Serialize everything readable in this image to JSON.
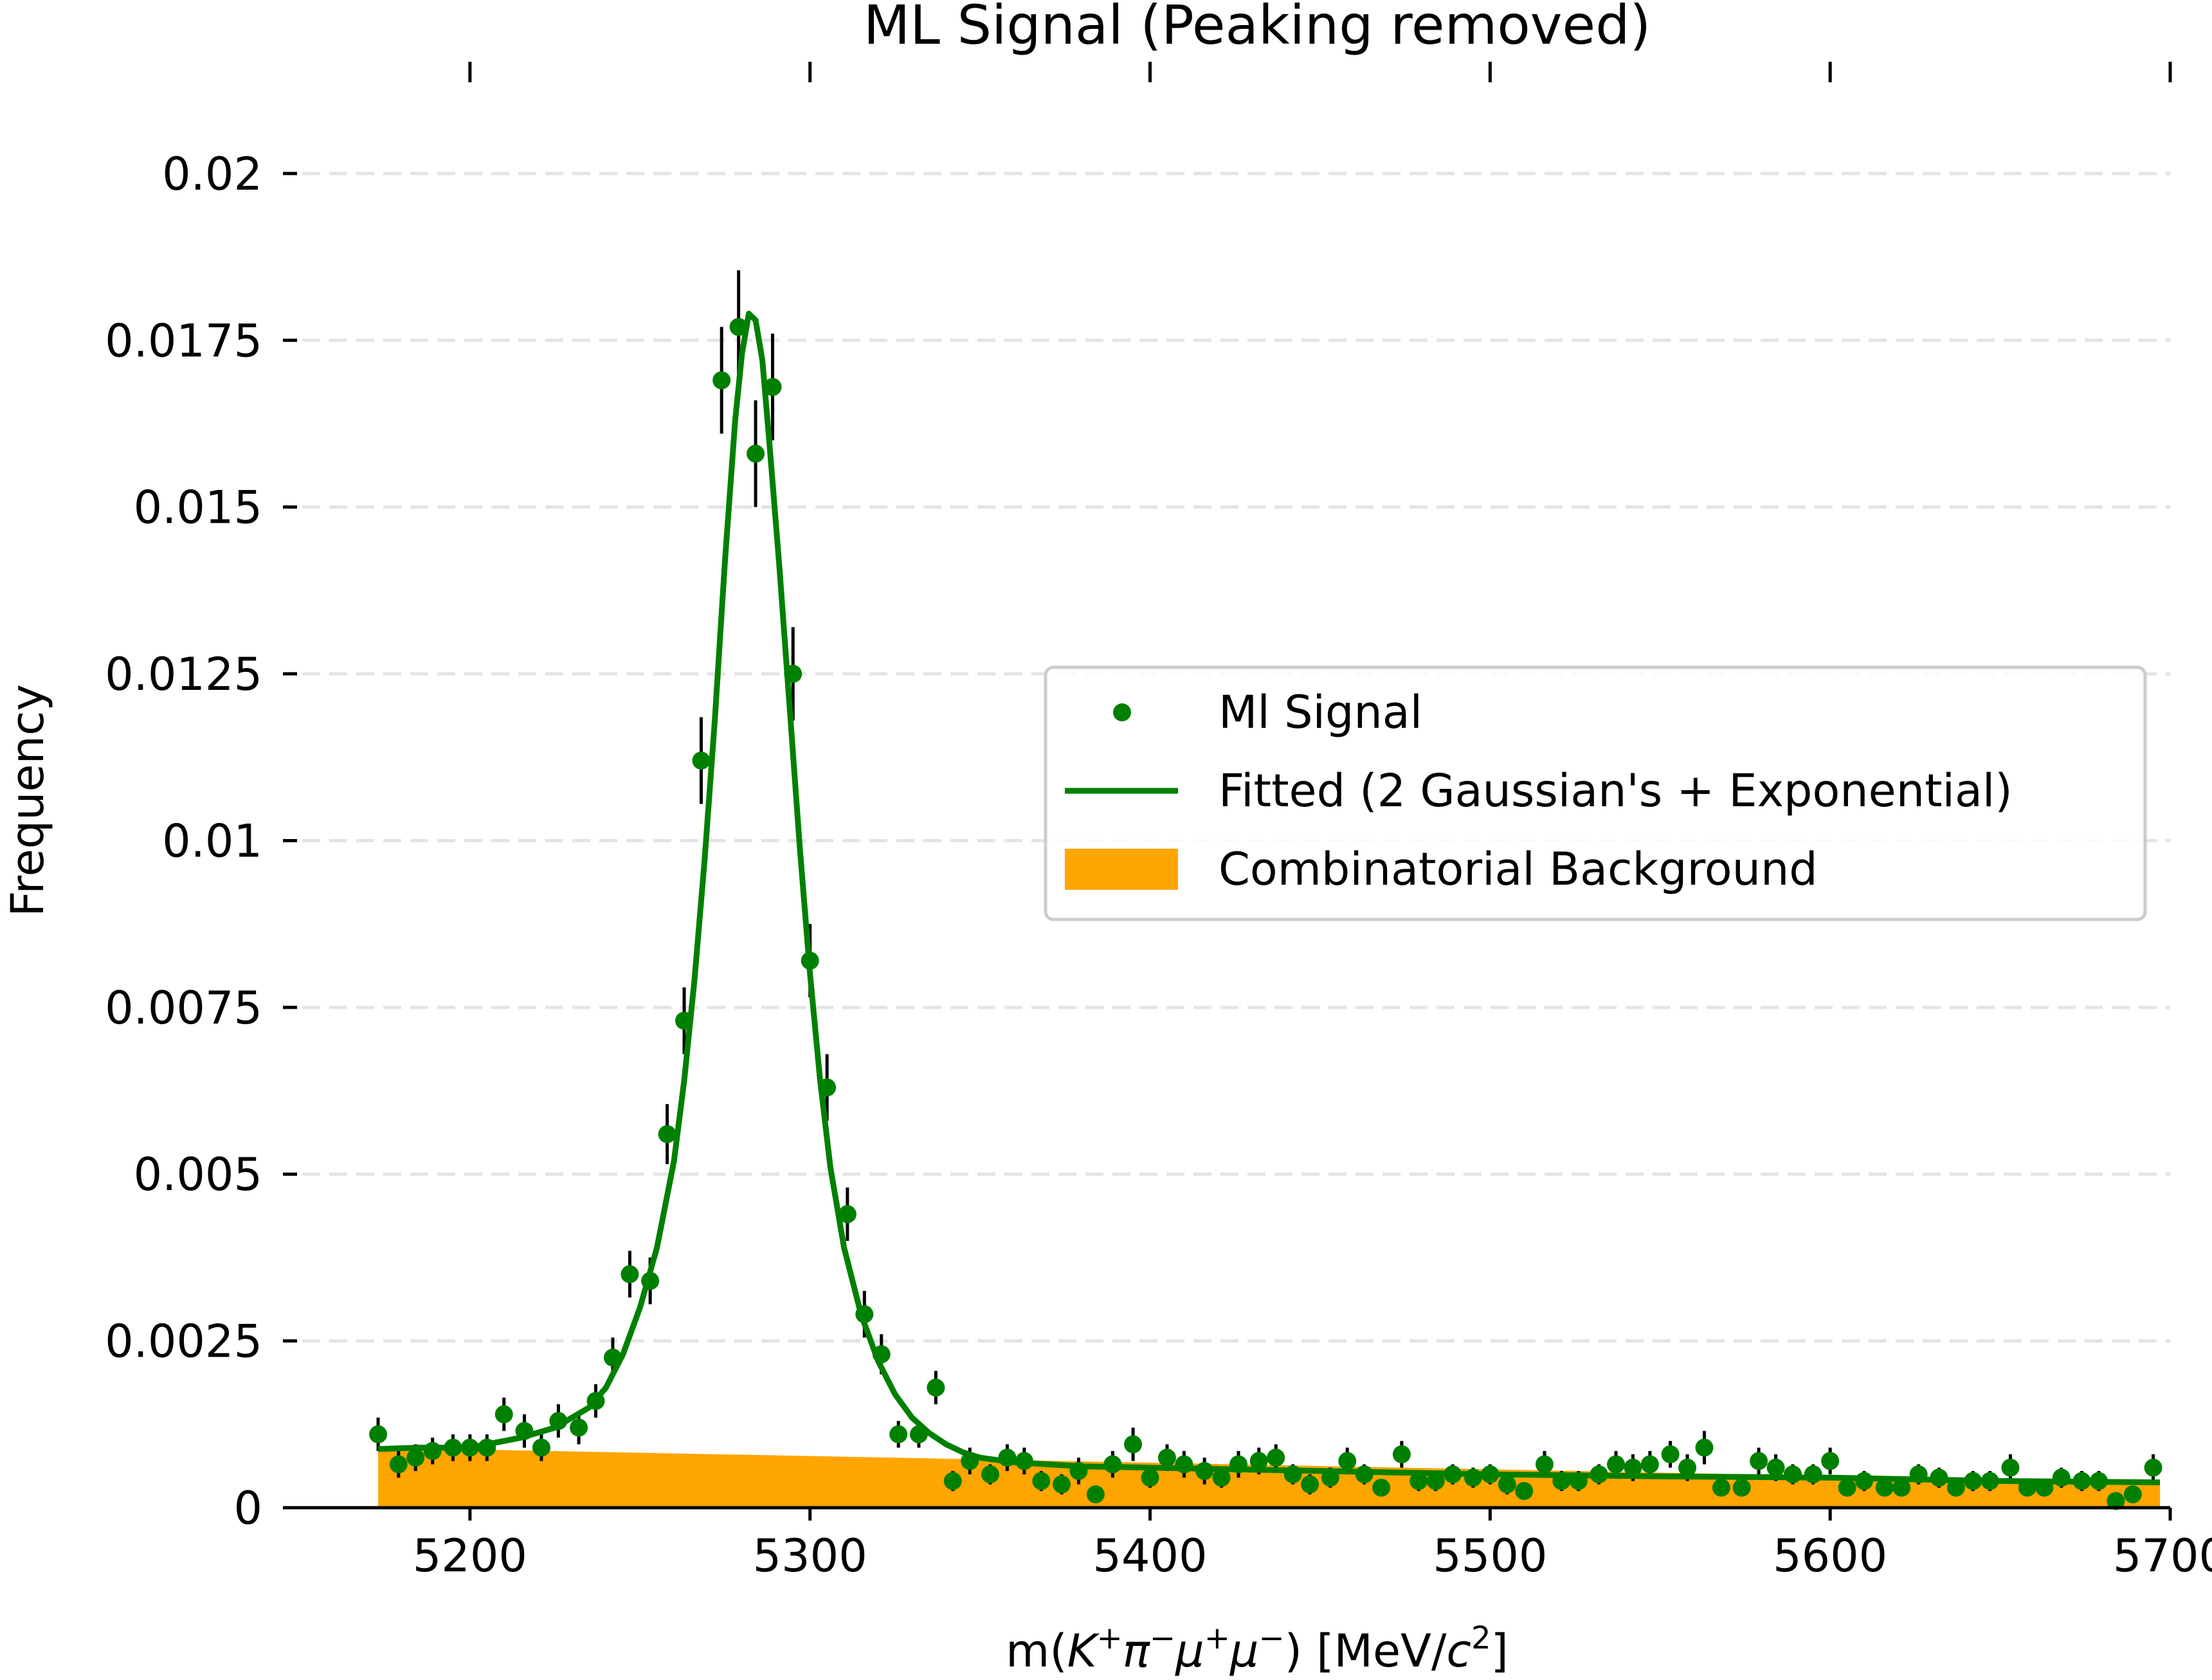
{
  "chart_data": {
    "type": "scatter",
    "title": "ML Signal (Peaking removed)",
    "xlabel_parts": [
      "m(",
      "K",
      "+",
      "π",
      "−",
      "μ",
      "+",
      "μ",
      "−",
      ") [MeV/",
      "c",
      "2",
      "]"
    ],
    "ylabel": "Frequency",
    "xlim": [
      5145,
      5700
    ],
    "ylim": [
      0,
      0.0205
    ],
    "x_ticks": [
      5200,
      5300,
      5400,
      5500,
      5600,
      5700
    ],
    "x_tick_labels": [
      "5200",
      "5300",
      "5400",
      "5500",
      "5600",
      "5700"
    ],
    "y_ticks": [
      0,
      0.0025,
      0.005,
      0.0075,
      0.01,
      0.0125,
      0.015,
      0.0175,
      0.02
    ],
    "y_tick_labels": [
      "0",
      "0.0025",
      "0.005",
      "0.0075",
      "0.01",
      "0.0125",
      "0.015",
      "0.0175",
      "0.02"
    ],
    "grid": "horizontal dashed",
    "legend_position": "right",
    "legend": [
      {
        "label": "Ml Signal",
        "kind": "point",
        "color": "#008000"
      },
      {
        "label": "Fitted (2 Gaussian's + Exponential)",
        "kind": "line",
        "color": "#008000"
      },
      {
        "label": "Combinatorial Background",
        "kind": "patch",
        "color": "#FFA500"
      }
    ],
    "series": [
      {
        "name": "Ml Signal",
        "type": "scatter-errorbar",
        "color": "#008000",
        "errcolor": "#000000",
        "x": [
          5173,
          5179,
          5184,
          5189,
          5195,
          5200,
          5205,
          5210,
          5216,
          5221,
          5226,
          5232,
          5237,
          5242,
          5247,
          5253,
          5258,
          5263,
          5268,
          5274,
          5279,
          5284,
          5289,
          5295,
          5300,
          5305,
          5311,
          5316,
          5321,
          5326,
          5332,
          5337,
          5342,
          5347,
          5353,
          5358,
          5363,
          5368,
          5374,
          5379,
          5384,
          5389,
          5395,
          5400,
          5405,
          5410,
          5416,
          5421,
          5426,
          5432,
          5437,
          5442,
          5447,
          5453,
          5458,
          5463,
          5468,
          5474,
          5479,
          5484,
          5489,
          5495,
          5500,
          5505,
          5510,
          5516,
          5521,
          5526,
          5532,
          5537,
          5542,
          5547,
          5553,
          5558,
          5563,
          5568,
          5574,
          5579,
          5584,
          5589,
          5595,
          5600,
          5605,
          5610,
          5616,
          5621,
          5626,
          5632,
          5637,
          5642,
          5647,
          5653,
          5658,
          5663,
          5668,
          5674,
          5679,
          5684,
          5689,
          5695
        ],
        "y": [
          0.0011,
          0.00065,
          0.00075,
          0.00085,
          0.0009,
          0.0009,
          0.0009,
          0.0014,
          0.00115,
          0.0009,
          0.0013,
          0.0012,
          0.0016,
          0.00225,
          0.0035,
          0.0034,
          0.0056,
          0.0073,
          0.0112,
          0.0169,
          0.0177,
          0.0158,
          0.0168,
          0.0125,
          0.0082,
          0.0063,
          0.0044,
          0.0029,
          0.0023,
          0.0011,
          0.0011,
          0.0018,
          0.0004,
          0.0007,
          0.0005,
          0.00075,
          0.0007,
          0.0004,
          0.00035,
          0.00055,
          0.0002,
          0.00065,
          0.00095,
          0.00045,
          0.00075,
          0.00065,
          0.00055,
          0.00045,
          0.00065,
          0.0007,
          0.00075,
          0.0005,
          0.00035,
          0.00045,
          0.0007,
          0.0005,
          0.0003,
          0.0008,
          0.0004,
          0.0004,
          0.0005,
          0.00045,
          0.0005,
          0.00035,
          0.00025,
          0.00065,
          0.0004,
          0.0004,
          0.0005,
          0.00065,
          0.0006,
          0.00065,
          0.0008,
          0.0006,
          0.0009,
          0.0003,
          0.0003,
          0.0007,
          0.0006,
          0.0005,
          0.0005,
          0.0007,
          0.0003,
          0.0004,
          0.0003,
          0.0003,
          0.0005,
          0.00045,
          0.0003,
          0.0004,
          0.0004,
          0.0006,
          0.0003,
          0.0003,
          0.00045,
          0.0004,
          0.0004,
          0.0001,
          0.0002,
          0.0006
        ],
        "yerr": [
          0.00025,
          0.0002,
          0.0002,
          0.0002,
          0.0002,
          0.0002,
          0.0002,
          0.00025,
          0.00025,
          0.0002,
          0.00025,
          0.00025,
          0.00025,
          0.0003,
          0.00035,
          0.00035,
          0.00045,
          0.0005,
          0.00065,
          0.0008,
          0.00085,
          0.0008,
          0.0008,
          0.0007,
          0.00055,
          0.0005,
          0.0004,
          0.00035,
          0.0003,
          0.0002,
          0.0002,
          0.00025,
          0.00015,
          0.0002,
          0.00015,
          0.0002,
          0.0002,
          0.00015,
          0.00015,
          0.0002,
          0.0001,
          0.0002,
          0.00025,
          0.00015,
          0.0002,
          0.0002,
          0.0002,
          0.00015,
          0.0002,
          0.0002,
          0.0002,
          0.00015,
          0.00015,
          0.00015,
          0.0002,
          0.00015,
          0.0001,
          0.0002,
          0.00015,
          0.00015,
          0.00015,
          0.00015,
          0.00015,
          0.00015,
          0.0001,
          0.0002,
          0.00015,
          0.00015,
          0.00015,
          0.0002,
          0.0002,
          0.0002,
          0.0002,
          0.0002,
          0.00025,
          0.0001,
          0.0001,
          0.0002,
          0.0002,
          0.00015,
          0.00015,
          0.0002,
          0.0001,
          0.00015,
          0.0001,
          0.0001,
          0.00015,
          0.00015,
          0.0001,
          0.00015,
          0.00015,
          0.0002,
          0.0001,
          0.0001,
          0.00015,
          0.00015,
          0.00015,
          0.0001,
          0.0001,
          0.0002
        ]
      },
      {
        "name": "Fitted (2 Gaussian's + Exponential)",
        "type": "line",
        "color": "#008000",
        "x": [
          5173,
          5185,
          5200,
          5215,
          5225,
          5235,
          5240,
          5245,
          5250,
          5255,
          5260,
          5263,
          5266,
          5269,
          5272,
          5275,
          5278,
          5280,
          5282,
          5284,
          5286,
          5288,
          5291,
          5294,
          5297,
          5300,
          5303,
          5306,
          5310,
          5315,
          5320,
          5325,
          5330,
          5335,
          5340,
          5345,
          5350,
          5360,
          5380,
          5400,
          5450,
          5500,
          5550,
          5600,
          5650,
          5697
        ],
        "y": [
          0.00088,
          0.0009,
          0.0009,
          0.00105,
          0.0012,
          0.0015,
          0.0018,
          0.0023,
          0.003,
          0.0039,
          0.0052,
          0.0064,
          0.0079,
          0.0097,
          0.0118,
          0.0142,
          0.0163,
          0.0173,
          0.0179,
          0.0178,
          0.0172,
          0.016,
          0.0141,
          0.012,
          0.0099,
          0.008,
          0.0064,
          0.0051,
          0.0039,
          0.0029,
          0.0022,
          0.0017,
          0.00135,
          0.00112,
          0.00095,
          0.00083,
          0.00075,
          0.00068,
          0.00062,
          0.0006,
          0.00055,
          0.0005,
          0.00047,
          0.00045,
          0.0004,
          0.00038
        ]
      },
      {
        "name": "Combinatorial Background",
        "type": "area",
        "color": "#FFA500",
        "x": [
          5173,
          5697
        ],
        "y": [
          0.0009,
          0.00038
        ]
      }
    ]
  }
}
